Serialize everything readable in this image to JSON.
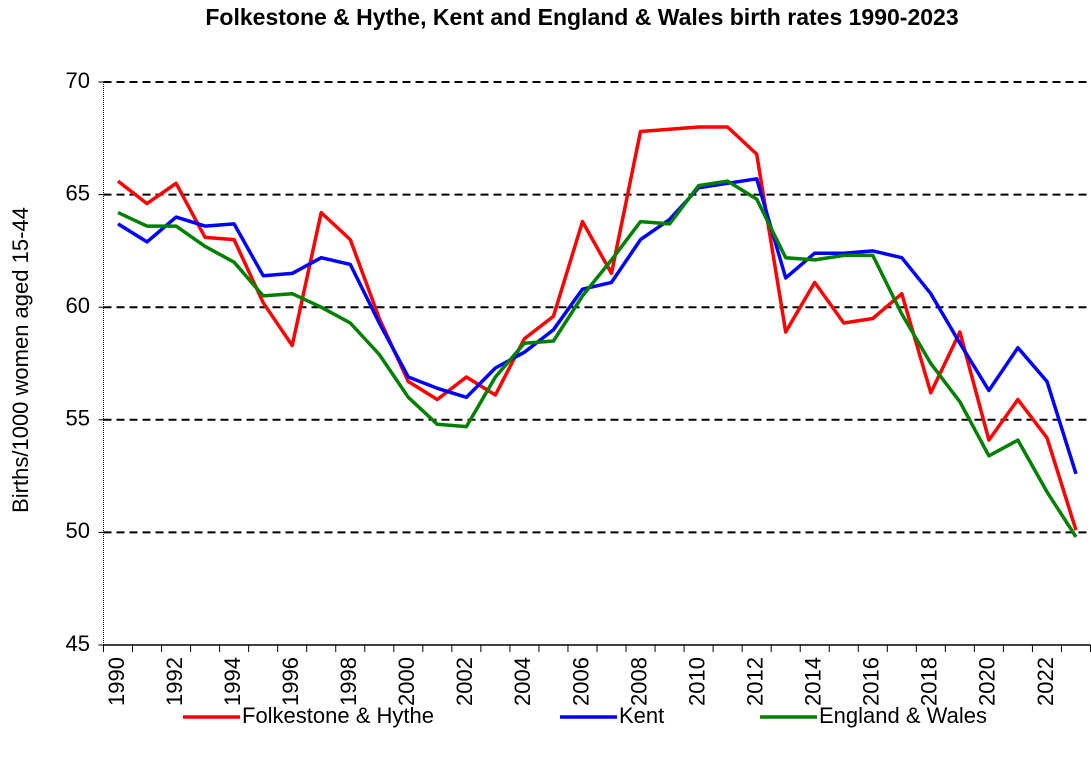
{
  "chart_data": {
    "type": "line",
    "title": "Folkestone & Hythe, Kent and England & Wales birth rates 1990-2023",
    "y_label": "Births/1000 women aged 15-44",
    "categories": [
      "1990",
      null,
      "1992",
      null,
      "1994",
      null,
      "1996",
      null,
      "1998",
      null,
      "2000",
      null,
      "2002",
      null,
      "2004",
      null,
      "2006",
      null,
      "2008",
      null,
      "2010",
      null,
      "2012",
      null,
      "2014",
      null,
      "2016",
      null,
      "2018",
      null,
      "2020",
      null,
      "2022",
      null
    ],
    "series": [
      {
        "name": "Folkestone & Hythe",
        "color": "#ff0000",
        "values": [
          65.6,
          64.6,
          65.5,
          63.1,
          63.0,
          60.2,
          58.3,
          64.2,
          63.0,
          59.5,
          56.7,
          55.9,
          56.9,
          56.1,
          58.6,
          59.6,
          63.8,
          61.5,
          67.8,
          67.9,
          68.0,
          68.0,
          66.8,
          58.9,
          61.1,
          59.3,
          59.5,
          60.6,
          56.2,
          58.9,
          54.1,
          55.9,
          54.2,
          50.1
        ]
      },
      {
        "name": "Kent",
        "color": "#0000ff",
        "values": [
          63.7,
          62.9,
          64.0,
          63.6,
          63.7,
          61.4,
          61.5,
          62.2,
          61.9,
          59.3,
          56.9,
          56.4,
          56.0,
          57.3,
          58.0,
          59.0,
          60.8,
          61.1,
          63.0,
          63.9,
          65.3,
          65.5,
          65.7,
          61.3,
          62.4,
          62.4,
          62.5,
          62.2,
          60.6,
          58.4,
          56.3,
          58.2,
          56.7,
          52.6
        ]
      },
      {
        "name": "England & Wales",
        "color": "#008000",
        "values": [
          64.2,
          63.6,
          63.6,
          62.7,
          62.0,
          60.5,
          60.6,
          60.0,
          59.3,
          57.9,
          56.0,
          54.8,
          54.7,
          56.9,
          58.4,
          58.5,
          60.5,
          62.1,
          63.8,
          63.7,
          65.4,
          65.6,
          64.8,
          62.2,
          62.1,
          62.3,
          62.3,
          59.7,
          57.5,
          55.8,
          53.4,
          54.1,
          51.8,
          49.8
        ]
      }
    ],
    "ylim": [
      45,
      70
    ],
    "yticks": [
      45,
      50,
      55,
      60,
      65,
      70
    ],
    "grid": true,
    "legend": "bottom"
  }
}
